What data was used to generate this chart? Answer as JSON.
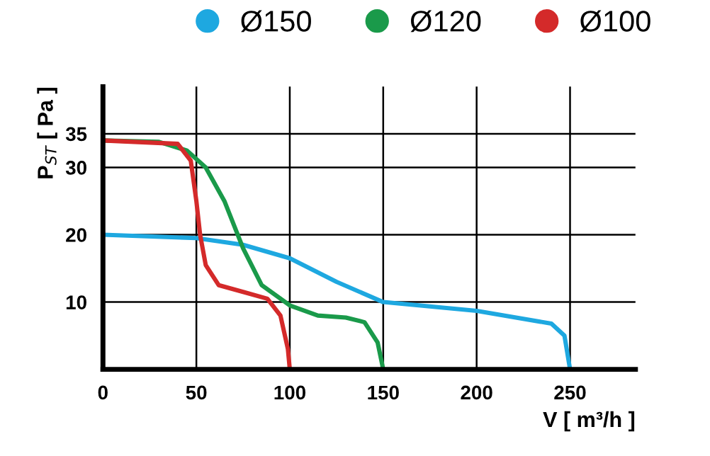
{
  "chart_data": {
    "type": "line",
    "xlabel": "V [ m³/h ]",
    "ylabel": "P$_{ST}$ [ Pa ]",
    "xlim": [
      0,
      285
    ],
    "ylim": [
      0,
      42
    ],
    "xticks": [
      0,
      50,
      100,
      150,
      200,
      250
    ],
    "yticks": [
      10,
      20,
      30,
      35
    ],
    "grid": true,
    "legend": "top right",
    "marker": "none",
    "line_style": "solid",
    "series": [
      {
        "name": "Ø150",
        "color": "#1ea8e0",
        "x": [
          0,
          50,
          75,
          100,
          125,
          150,
          200,
          240,
          247,
          250
        ],
        "values": [
          20,
          19.5,
          18.5,
          16.5,
          13,
          10,
          8.7,
          6.8,
          5,
          0
        ]
      },
      {
        "name": "Ø120",
        "color": "#1a9a4a",
        "x": [
          0,
          30,
          45,
          55,
          65,
          75,
          85,
          100,
          115,
          130,
          140,
          147,
          150
        ],
        "values": [
          34,
          33.8,
          32.5,
          30,
          25,
          18,
          12.5,
          9.5,
          8,
          7.7,
          7,
          4,
          0
        ]
      },
      {
        "name": "Ø100",
        "color": "#d42a2a",
        "x": [
          0,
          40,
          47,
          50,
          52,
          55,
          62,
          75,
          88,
          95,
          99,
          100
        ],
        "values": [
          34,
          33.5,
          31,
          25,
          20,
          15.5,
          12.5,
          11.5,
          10.5,
          8,
          3,
          0
        ]
      }
    ]
  }
}
